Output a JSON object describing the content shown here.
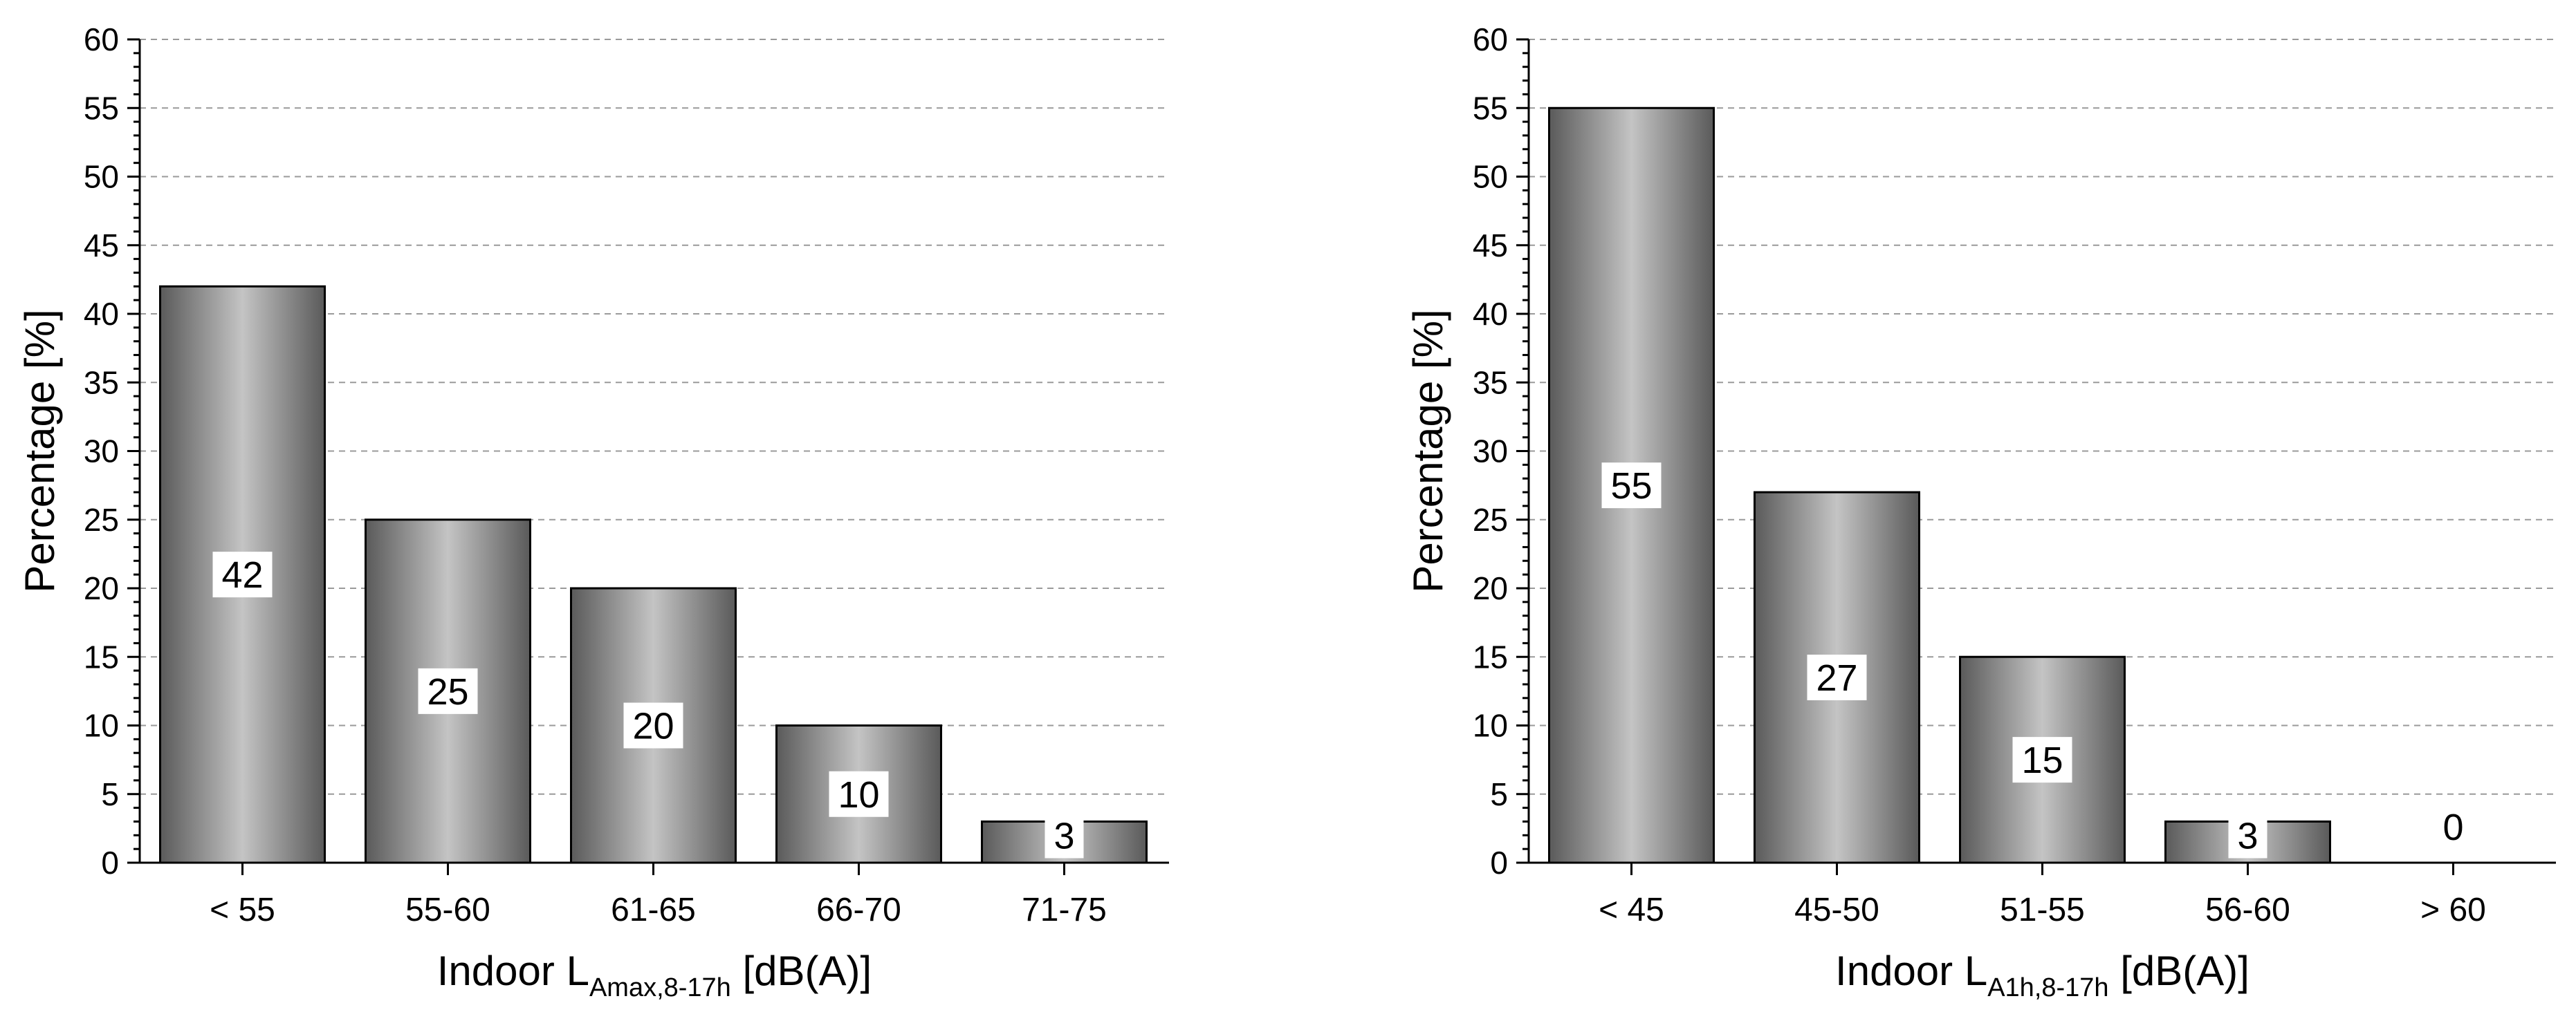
{
  "chart_data": [
    {
      "type": "bar",
      "categories": [
        "< 55",
        "55-60",
        "61-65",
        "66-70",
        "71-75"
      ],
      "values": [
        42,
        25,
        20,
        10,
        3
      ],
      "data_labels": [
        "42",
        "25",
        "20",
        "10",
        "3"
      ],
      "ylabel": "Percentage [%]",
      "xlabel_main": "Indoor L",
      "xlabel_sub": "Amax,8-17h",
      "xlabel_unit": " [dB(A)]",
      "ylim": [
        0,
        60
      ],
      "yticks": [
        0,
        5,
        10,
        15,
        20,
        25,
        30,
        35,
        40,
        45,
        50,
        55,
        60
      ],
      "ytick_labels": [
        "0",
        "5",
        "10",
        "15",
        "20",
        "25",
        "30",
        "35",
        "40",
        "45",
        "50",
        "55",
        "60"
      ],
      "grid": "horizontal dashed",
      "bar_fill": "gray cylindrical gradient"
    },
    {
      "type": "bar",
      "categories": [
        "< 45",
        "45-50",
        "51-55",
        "56-60",
        "> 60"
      ],
      "values": [
        55,
        27,
        15,
        3,
        0
      ],
      "data_labels": [
        "55",
        "27",
        "15",
        "3",
        "0"
      ],
      "ylabel": "Percentage [%]",
      "xlabel_main": "Indoor L",
      "xlabel_sub": "A1h,8-17h",
      "xlabel_unit": " [dB(A)]",
      "ylim": [
        0,
        60
      ],
      "yticks": [
        0,
        5,
        10,
        15,
        20,
        25,
        30,
        35,
        40,
        45,
        50,
        55,
        60
      ],
      "ytick_labels": [
        "0",
        "5",
        "10",
        "15",
        "20",
        "25",
        "30",
        "35",
        "40",
        "45",
        "50",
        "55",
        "60"
      ],
      "grid": "horizontal dashed",
      "bar_fill": "gray cylindrical gradient"
    }
  ],
  "colors": {
    "bar_dark": "#5a5a5a",
    "bar_light": "#c4c4c4",
    "bar_outline": "#000000",
    "grid": "#9a9a9a",
    "axis": "#000000",
    "label_box": "#ffffff"
  }
}
